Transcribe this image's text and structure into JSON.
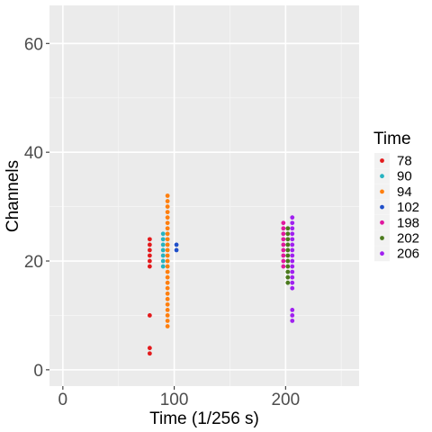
{
  "chart_data": {
    "type": "scatter",
    "xlabel": "Time (1/256 s)",
    "ylabel": "Channels",
    "xlim": [
      -12,
      266
    ],
    "ylim": [
      -3,
      67
    ],
    "x_ticks": [
      0,
      100,
      200
    ],
    "y_ticks": [
      0,
      20,
      40,
      60
    ],
    "grid": true,
    "legend_position": "right",
    "legend_title": "Time",
    "series": [
      {
        "name": "78",
        "color": "#e31a1c",
        "x": 78,
        "y": [
          3,
          4,
          10,
          19,
          20,
          21,
          22,
          23,
          24
        ]
      },
      {
        "name": "90",
        "color": "#26b3c1",
        "x": 90,
        "y": [
          19,
          20,
          21,
          22,
          23,
          24,
          25
        ]
      },
      {
        "name": "94",
        "color": "#ff7f0e",
        "x": 94,
        "y": [
          8,
          9,
          10,
          11,
          12,
          13,
          14,
          15,
          16,
          17,
          18,
          19,
          20,
          21,
          22,
          23,
          24,
          25,
          26,
          27,
          28,
          29,
          30,
          31,
          32
        ]
      },
      {
        "name": "102",
        "color": "#1f4fc9",
        "x": 102,
        "y": [
          22,
          23
        ]
      },
      {
        "name": "198",
        "color": "#e0179f",
        "x": 198,
        "y": [
          19,
          20,
          21,
          22,
          23,
          24,
          25,
          26,
          27
        ]
      },
      {
        "name": "202",
        "color": "#4b7a1d",
        "x": 202,
        "y": [
          16,
          17,
          18,
          19,
          20,
          21,
          22,
          23,
          24,
          25,
          26
        ]
      },
      {
        "name": "206",
        "color": "#a020f0",
        "x": 206,
        "y": [
          9,
          10,
          11,
          15,
          16,
          17,
          18,
          19,
          20,
          21,
          22,
          23,
          24,
          25,
          26,
          27,
          28
        ]
      }
    ]
  }
}
